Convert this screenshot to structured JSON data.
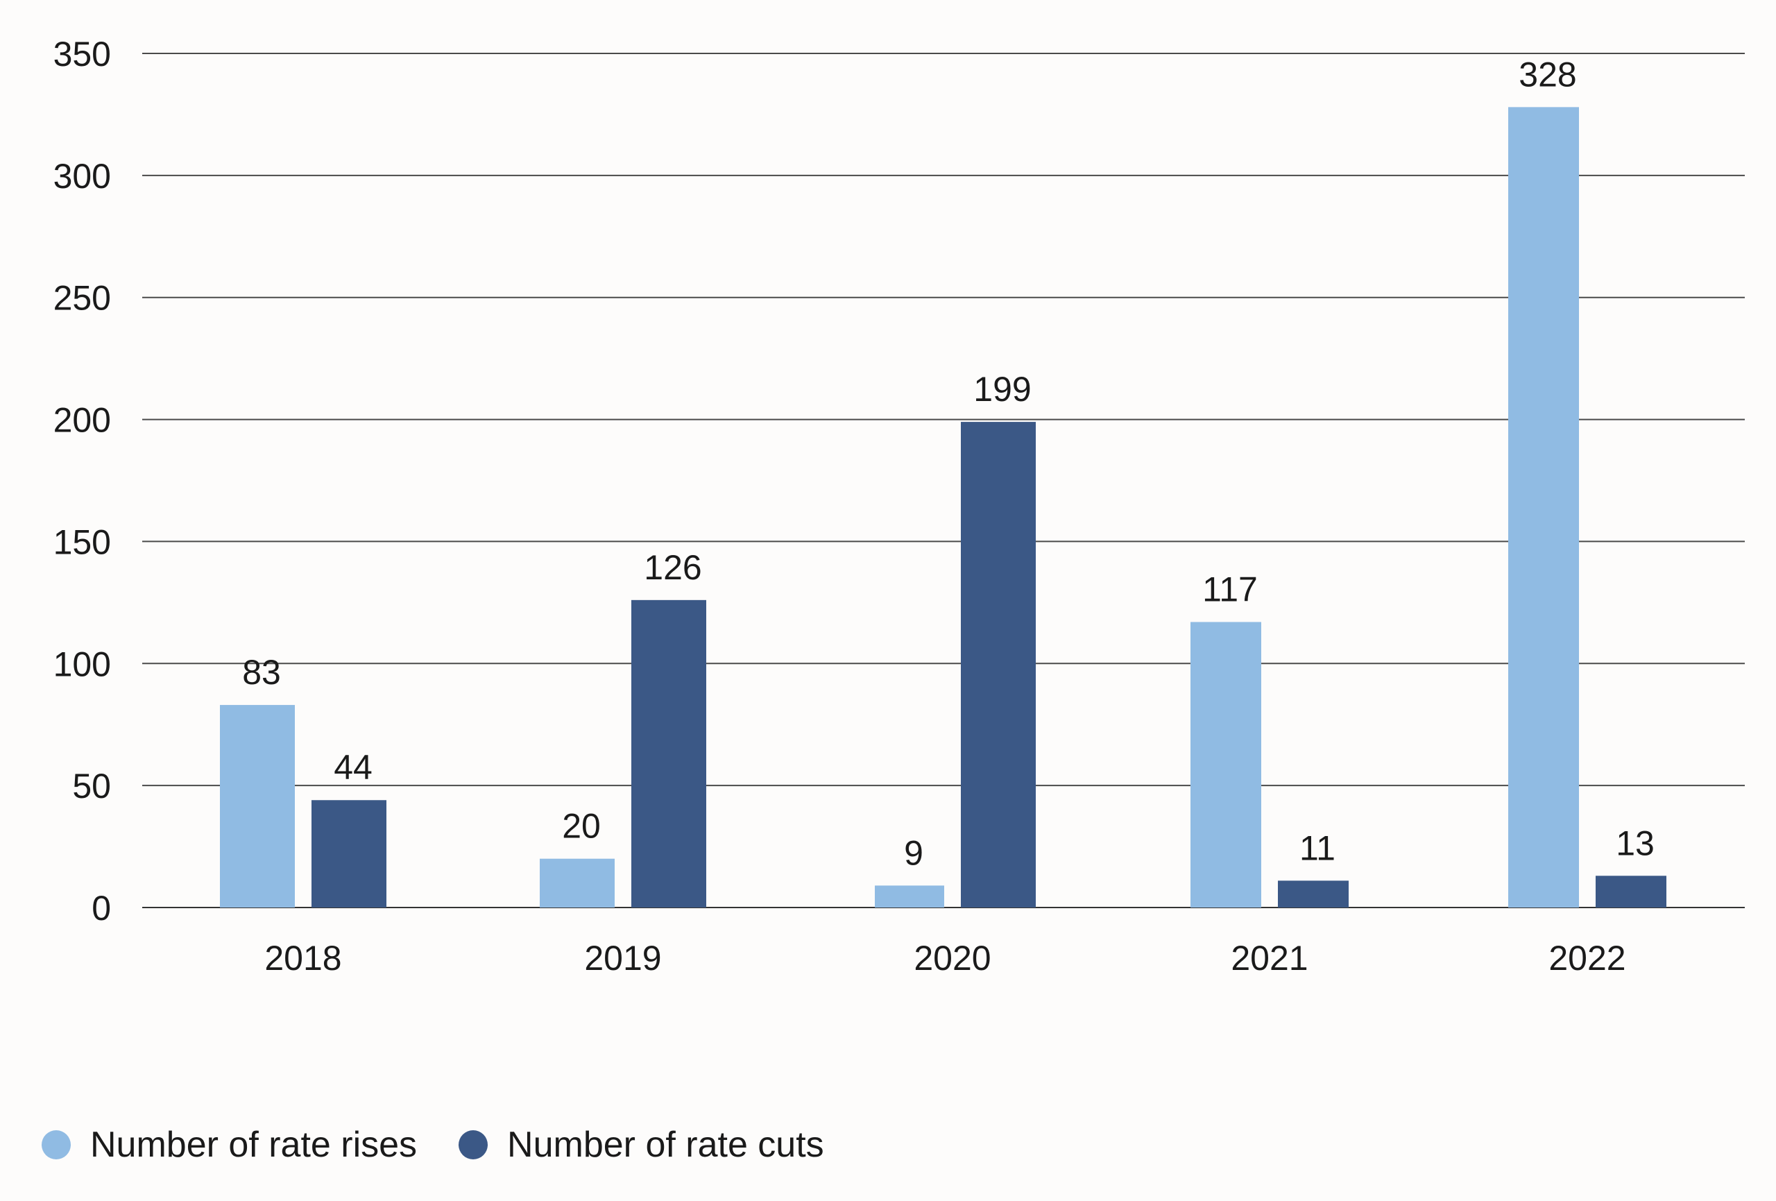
{
  "chart_data": {
    "type": "bar",
    "categories": [
      "2018",
      "2019",
      "2020",
      "2021",
      "2022"
    ],
    "series": [
      {
        "name": "Number of rate rises",
        "values": [
          83,
          20,
          9,
          117,
          328
        ],
        "color": "#90bbe3"
      },
      {
        "name": "Number of rate cuts",
        "values": [
          44,
          126,
          199,
          11,
          13
        ],
        "color": "#3b5886"
      }
    ],
    "title": "",
    "xlabel": "",
    "ylabel": "",
    "ylim": [
      0,
      350
    ],
    "yticks": [
      0,
      50,
      100,
      150,
      200,
      250,
      300,
      350
    ],
    "grid": true,
    "data_labels": true,
    "legend_position": "bottom-left"
  }
}
